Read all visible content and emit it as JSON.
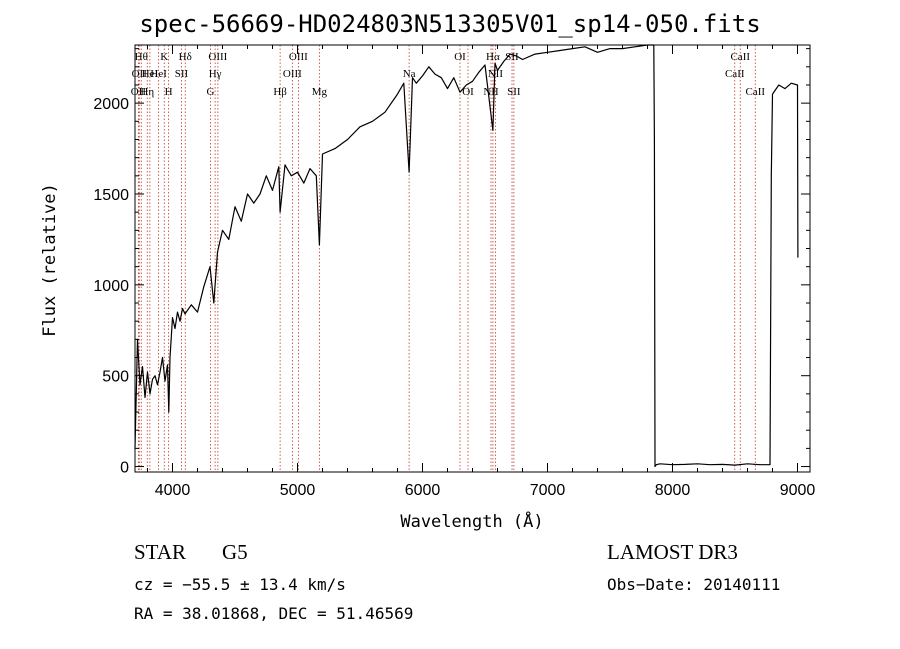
{
  "chart_data": {
    "type": "line",
    "title": "spec-56669-HD024803N513305V01_sp14-050.fits",
    "xlabel": "Wavelength (Å)",
    "ylabel": "Flux (relative)",
    "xlim": [
      3700,
      9100
    ],
    "ylim": [
      -30,
      2320
    ],
    "x_ticks": [
      4000,
      5000,
      6000,
      7000,
      8000,
      9000
    ],
    "y_ticks": [
      0,
      500,
      1000,
      1500,
      2000
    ],
    "series": [
      {
        "name": "spectrum",
        "x": [
          3700,
          3720,
          3740,
          3760,
          3780,
          3800,
          3820,
          3840,
          3860,
          3880,
          3900,
          3920,
          3940,
          3960,
          3970,
          3980,
          4000,
          4020,
          4040,
          4060,
          4080,
          4100,
          4150,
          4200,
          4250,
          4300,
          4330,
          4360,
          4400,
          4450,
          4500,
          4550,
          4600,
          4650,
          4700,
          4750,
          4800,
          4850,
          4861,
          4900,
          4950,
          5000,
          5050,
          5100,
          5150,
          5175,
          5200,
          5300,
          5400,
          5500,
          5600,
          5700,
          5800,
          5850,
          5893,
          5920,
          5950,
          6000,
          6050,
          6100,
          6150,
          6200,
          6250,
          6300,
          6350,
          6400,
          6450,
          6500,
          6563,
          6580,
          6600,
          6650,
          6700,
          6750,
          6800,
          6900,
          7000,
          7100,
          7200,
          7300,
          7400,
          7500,
          7600,
          7700,
          7800,
          7850,
          7855,
          7860,
          7870,
          7900,
          8000,
          8100,
          8200,
          8300,
          8400,
          8500,
          8600,
          8700,
          8780,
          8790,
          8800,
          8850,
          8900,
          8950,
          9000,
          9003
        ],
        "values": [
          100,
          700,
          450,
          550,
          380,
          520,
          400,
          480,
          500,
          450,
          520,
          600,
          470,
          560,
          300,
          600,
          820,
          760,
          850,
          800,
          870,
          840,
          890,
          850,
          990,
          1100,
          900,
          1180,
          1300,
          1250,
          1430,
          1350,
          1500,
          1450,
          1500,
          1600,
          1520,
          1650,
          1400,
          1660,
          1600,
          1620,
          1560,
          1640,
          1600,
          1220,
          1720,
          1750,
          1800,
          1870,
          1900,
          1950,
          2050,
          2110,
          1620,
          2140,
          2110,
          2150,
          2200,
          2160,
          2140,
          2080,
          2140,
          2060,
          2100,
          2120,
          2170,
          2210,
          1850,
          2220,
          2180,
          2230,
          2270,
          2260,
          2240,
          2270,
          2280,
          2290,
          2300,
          2310,
          2280,
          2300,
          2300,
          2310,
          2320,
          2320,
          1800,
          0,
          10,
          15,
          10,
          12,
          15,
          10,
          12,
          8,
          15,
          10,
          10,
          1600,
          2050,
          2100,
          2080,
          2110,
          2100,
          1150
        ]
      }
    ],
    "lines": [
      {
        "wavelength": 3727,
        "label": "OII",
        "row": 2
      },
      {
        "wavelength": 3734,
        "label": "OII",
        "row": 1
      },
      {
        "wavelength": 3750,
        "label": "Hθ",
        "row": 0
      },
      {
        "wavelength": 3798,
        "label": "Hη",
        "row": 2
      },
      {
        "wavelength": 3819,
        "label": "HeI",
        "row": 1
      },
      {
        "wavelength": 3889,
        "label": "HeI",
        "row": 1
      },
      {
        "wavelength": 3934,
        "label": "K",
        "row": 0
      },
      {
        "wavelength": 3969,
        "label": "H",
        "row": 2
      },
      {
        "wavelength": 4072,
        "label": "SII",
        "row": 1
      },
      {
        "wavelength": 4102,
        "label": "Hδ",
        "row": 0
      },
      {
        "wavelength": 4304,
        "label": "G",
        "row": 2
      },
      {
        "wavelength": 4341,
        "label": "Hγ",
        "row": 1
      },
      {
        "wavelength": 4363,
        "label": "OIII",
        "row": 0
      },
      {
        "wavelength": 4861,
        "label": "Hβ",
        "row": 2
      },
      {
        "wavelength": 4959,
        "label": "OIII",
        "row": 1
      },
      {
        "wavelength": 5007,
        "label": "OIII",
        "row": 0
      },
      {
        "wavelength": 5175,
        "label": "Mg",
        "row": 2
      },
      {
        "wavelength": 5893,
        "label": "Na",
        "row": 1
      },
      {
        "wavelength": 6300,
        "label": "OI",
        "row": 0
      },
      {
        "wavelength": 6364,
        "label": "OI",
        "row": 2
      },
      {
        "wavelength": 6548,
        "label": "NII",
        "row": 2
      },
      {
        "wavelength": 6563,
        "label": "Hα",
        "row": 0
      },
      {
        "wavelength": 6583,
        "label": "NII",
        "row": 1
      },
      {
        "wavelength": 6716,
        "label": "SII",
        "row": 0
      },
      {
        "wavelength": 6731,
        "label": "SII",
        "row": 2
      },
      {
        "wavelength": 8498,
        "label": "CaII",
        "row": 1
      },
      {
        "wavelength": 8542,
        "label": "CaII",
        "row": 0
      },
      {
        "wavelength": 8662,
        "label": "CaII",
        "row": 2
      }
    ]
  },
  "info": {
    "class_label": "STAR",
    "subclass": "G5",
    "cz": "cz = −55.5 ± 13.4 km/s",
    "radec": "RA =  38.01868, DEC =  51.46569",
    "survey": "LAMOST DR3",
    "obs_date": "Obs−Date: 20140111"
  },
  "colors": {
    "spectrum": "#000000",
    "line_marker": "#c0392b",
    "background": "#ffffff"
  }
}
